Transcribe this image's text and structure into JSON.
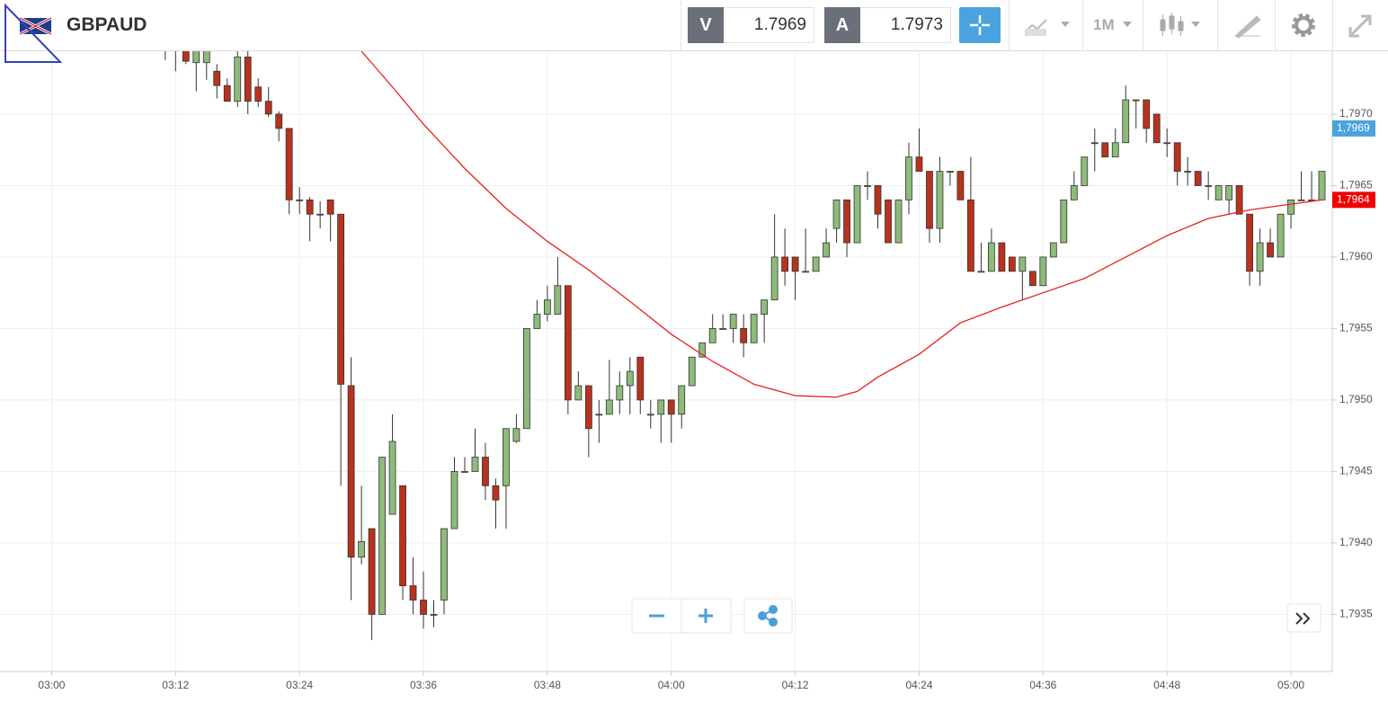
{
  "header": {
    "symbol": "GBPAUD",
    "sell_label": "V",
    "sell_price": "1.7969",
    "buy_label": "A",
    "buy_price": "1.7973",
    "timeframe": "1M"
  },
  "chart_data": {
    "type": "candlestick",
    "x": [
      "03:11",
      "03:12",
      "03:13",
      "03:14",
      "03:15",
      "03:16",
      "03:17",
      "03:18",
      "03:19",
      "03:20",
      "03:21",
      "03:22",
      "03:23",
      "03:24",
      "03:25",
      "03:26",
      "03:27",
      "03:28",
      "03:29",
      "03:30",
      "03:31",
      "03:32",
      "03:33",
      "03:34",
      "03:35",
      "03:36",
      "03:37",
      "03:38",
      "03:39",
      "03:40",
      "03:41",
      "03:42",
      "03:43",
      "03:44",
      "03:45",
      "03:46",
      "03:47",
      "03:48",
      "03:49",
      "03:50",
      "03:51",
      "03:52",
      "03:53",
      "03:54",
      "03:55",
      "03:56",
      "03:57",
      "03:58",
      "03:59",
      "04:00",
      "04:01",
      "04:02",
      "04:03",
      "04:04",
      "04:05",
      "04:06",
      "04:07",
      "04:08",
      "04:09",
      "04:10",
      "04:11",
      "04:12",
      "04:13",
      "04:14",
      "04:15",
      "04:16",
      "04:17",
      "04:18",
      "04:19",
      "04:20",
      "04:21",
      "04:22",
      "04:23",
      "04:24",
      "04:25",
      "04:26",
      "04:27",
      "04:28",
      "04:29",
      "04:30",
      "04:31",
      "04:32",
      "04:33",
      "04:34",
      "04:35",
      "04:36",
      "04:37",
      "04:38",
      "04:39",
      "04:40",
      "04:41",
      "04:42",
      "04:43",
      "04:44",
      "04:45",
      "04:46",
      "04:47",
      "04:48",
      "04:49",
      "04:50",
      "04:51",
      "04:52",
      "04:53",
      "04:54",
      "04:55",
      "04:56",
      "04:57",
      "04:58",
      "04:59",
      "05:00",
      "05:01",
      "05:02",
      "05:03"
    ],
    "open": [
      1.79752,
      1.79745,
      1.7976,
      1.79736,
      1.79736,
      1.7973,
      1.7972,
      1.79709,
      1.7974,
      1.79719,
      1.79709,
      1.797,
      1.7969,
      1.7964,
      1.7964,
      1.7963,
      1.7964,
      1.7963,
      1.7951,
      1.7939,
      1.7941,
      1.7935,
      1.7942,
      1.7944,
      1.7937,
      1.7936,
      1.7935,
      1.7936,
      1.7941,
      1.7945,
      1.7945,
      1.7946,
      1.7944,
      1.7944,
      1.79471,
      1.7948,
      1.7955,
      1.7956,
      1.7956,
      1.7958,
      1.795,
      1.7951,
      1.7949,
      1.7949,
      1.795,
      1.7951,
      1.7953,
      1.7949,
      1.7949,
      1.795,
      1.7949,
      1.7951,
      1.7953,
      1.7954,
      1.7955,
      1.7955,
      1.7955,
      1.7954,
      1.7956,
      1.7957,
      1.796,
      1.796,
      1.7959,
      1.7959,
      1.796,
      1.7962,
      1.7964,
      1.7961,
      1.7965,
      1.7965,
      1.7964,
      1.7961,
      1.7964,
      1.7967,
      1.7966,
      1.7962,
      1.7966,
      1.7966,
      1.7964,
      1.7959,
      1.7959,
      1.7961,
      1.796,
      1.7959,
      1.7959,
      1.7958,
      1.796,
      1.7961,
      1.7964,
      1.7965,
      1.7968,
      1.7968,
      1.7967,
      1.7968,
      1.7971,
      1.7971,
      1.797,
      1.7968,
      1.7968,
      1.7966,
      1.7966,
      1.7965,
      1.7964,
      1.7964,
      1.7965,
      1.7963,
      1.7959,
      1.7961,
      1.796,
      1.7963,
      1.7964,
      1.7964,
      1.7964
    ],
    "high": [
      1.7976,
      1.79752,
      1.79762,
      1.79748,
      1.79749,
      1.79735,
      1.79725,
      1.79748,
      1.7975,
      1.79725,
      1.79719,
      1.79702,
      1.7969,
      1.79649,
      1.79642,
      1.79639,
      1.7964,
      1.7963,
      1.7953,
      1.7944,
      1.7941,
      1.7946,
      1.7949,
      1.7944,
      1.7939,
      1.7938,
      1.7936,
      1.7941,
      1.7946,
      1.7946,
      1.7948,
      1.7947,
      1.79445,
      1.7948,
      1.7949,
      1.7955,
      1.7957,
      1.7958,
      1.796,
      1.7958,
      1.7952,
      1.7951,
      1.795,
      1.79528,
      1.7952,
      1.7953,
      1.7953,
      1.795,
      1.795,
      1.795,
      1.7951,
      1.7953,
      1.7954,
      1.7956,
      1.7956,
      1.7956,
      1.7956,
      1.7956,
      1.7957,
      1.7963,
      1.7962,
      1.796,
      1.7962,
      1.796,
      1.7962,
      1.7964,
      1.7964,
      1.7965,
      1.7966,
      1.7965,
      1.7964,
      1.7964,
      1.7968,
      1.7969,
      1.7966,
      1.7967,
      1.7966,
      1.7966,
      1.7967,
      1.7961,
      1.7962,
      1.7961,
      1.796,
      1.796,
      1.7959,
      1.796,
      1.7961,
      1.7964,
      1.7966,
      1.7967,
      1.7969,
      1.7968,
      1.7969,
      1.7972,
      1.7971,
      1.7971,
      1.797,
      1.7969,
      1.7968,
      1.7967,
      1.7966,
      1.7966,
      1.7965,
      1.7965,
      1.7965,
      1.7963,
      1.7962,
      1.7962,
      1.7963,
      1.7964,
      1.7966,
      1.7966,
      1.7966
    ],
    "low": [
      1.79738,
      1.7973,
      1.79735,
      1.79716,
      1.79724,
      1.79711,
      1.79709,
      1.79705,
      1.797,
      1.79705,
      1.79698,
      1.79681,
      1.7963,
      1.7963,
      1.79611,
      1.7962,
      1.79611,
      1.7944,
      1.7936,
      1.79385,
      1.79332,
      1.7935,
      1.7942,
      1.7936,
      1.7935,
      1.7934,
      1.79341,
      1.7935,
      1.7941,
      1.7945,
      1.7945,
      1.7943,
      1.7941,
      1.7941,
      1.7947,
      1.7948,
      1.7955,
      1.79555,
      1.7956,
      1.7949,
      1.795,
      1.7946,
      1.7947,
      1.7949,
      1.7949,
      1.7949,
      1.7949,
      1.7948,
      1.7947,
      1.7947,
      1.7948,
      1.7951,
      1.7953,
      1.7954,
      1.7955,
      1.7954,
      1.7953,
      1.7954,
      1.7954,
      1.7957,
      1.7958,
      1.7957,
      1.7959,
      1.7959,
      1.796,
      1.7961,
      1.796,
      1.7961,
      1.7964,
      1.7962,
      1.7961,
      1.7961,
      1.7963,
      1.7966,
      1.7961,
      1.7961,
      1.7965,
      1.7964,
      1.7959,
      1.7959,
      1.7959,
      1.7959,
      1.7959,
      1.7957,
      1.7958,
      1.7958,
      1.796,
      1.7961,
      1.7964,
      1.7965,
      1.7966,
      1.7967,
      1.7967,
      1.7968,
      1.7969,
      1.7968,
      1.7968,
      1.7967,
      1.7965,
      1.7965,
      1.7965,
      1.7964,
      1.7964,
      1.7963,
      1.7963,
      1.7958,
      1.7958,
      1.796,
      1.796,
      1.7962,
      1.7964,
      1.7964,
      1.7964
    ],
    "close": [
      1.79745,
      1.79748,
      1.79737,
      1.79745,
      1.79745,
      1.7972,
      1.79709,
      1.7974,
      1.79709,
      1.79709,
      1.797,
      1.7969,
      1.7964,
      1.7964,
      1.7963,
      1.7963,
      1.7963,
      1.79511,
      1.7939,
      1.79401,
      1.7935,
      1.7946,
      1.79471,
      1.7937,
      1.7936,
      1.7935,
      1.7935,
      1.7941,
      1.7945,
      1.7945,
      1.7946,
      1.7944,
      1.7943,
      1.7948,
      1.7948,
      1.7955,
      1.7956,
      1.7957,
      1.7958,
      1.795,
      1.7951,
      1.7948,
      1.7949,
      1.795,
      1.7951,
      1.7952,
      1.795,
      1.7949,
      1.795,
      1.7949,
      1.7951,
      1.7953,
      1.7954,
      1.7955,
      1.7955,
      1.7956,
      1.7954,
      1.7956,
      1.7957,
      1.796,
      1.7959,
      1.7959,
      1.7959,
      1.796,
      1.7961,
      1.7964,
      1.7961,
      1.7965,
      1.7965,
      1.7963,
      1.7961,
      1.7964,
      1.7967,
      1.7966,
      1.7962,
      1.7966,
      1.7966,
      1.7964,
      1.7959,
      1.7959,
      1.7961,
      1.7959,
      1.7959,
      1.796,
      1.7958,
      1.796,
      1.7961,
      1.7964,
      1.7965,
      1.7967,
      1.7968,
      1.7967,
      1.7968,
      1.7971,
      1.7971,
      1.7969,
      1.7968,
      1.7968,
      1.7966,
      1.7966,
      1.7965,
      1.7965,
      1.7965,
      1.7965,
      1.7963,
      1.7959,
      1.7961,
      1.796,
      1.7963,
      1.7964,
      1.7964,
      1.7964,
      1.7966
    ],
    "up_color": "#8dbb7a",
    "down_color": "#b8321d",
    "ma": {
      "color": "#e8201c",
      "x": [
        "03:30",
        "03:33",
        "03:36",
        "03:40",
        "03:44",
        "03:48",
        "03:52",
        "03:56",
        "04:00",
        "04:04",
        "04:08",
        "04:12",
        "04:16",
        "04:18",
        "04:20",
        "04:24",
        "04:28",
        "04:32",
        "04:36",
        "04:40",
        "04:44",
        "04:48",
        "04:52",
        "04:56",
        "05:00",
        "05:03"
      ],
      "values": [
        1.79744,
        1.79719,
        1.79693,
        1.79662,
        1.79634,
        1.79611,
        1.79591,
        1.79569,
        1.79546,
        1.79527,
        1.79511,
        1.79503,
        1.79502,
        1.79506,
        1.79516,
        1.79532,
        1.79554,
        1.79565,
        1.79575,
        1.79585,
        1.796,
        1.79615,
        1.79627,
        1.79633,
        1.79637,
        1.7964
      ]
    },
    "price_labels": [
      {
        "value": 1.7969,
        "label": "1,7969",
        "color": "#4aa3df"
      },
      {
        "value": 1.7964,
        "label": "1,7964",
        "color": "#ee0000"
      }
    ],
    "ylim": [
      1.7931,
      1.79744
    ],
    "yticks": [
      {
        "value": 1.7935,
        "label": "1,7935"
      },
      {
        "value": 1.794,
        "label": "1,7940"
      },
      {
        "value": 1.7945,
        "label": "1,7945"
      },
      {
        "value": 1.795,
        "label": "1,7950"
      },
      {
        "value": 1.7955,
        "label": "1,7955"
      },
      {
        "value": 1.796,
        "label": "1,7960"
      },
      {
        "value": 1.7965,
        "label": "1,7965"
      },
      {
        "value": 1.797,
        "label": "1,7970"
      }
    ],
    "xlim": [
      "02:55",
      "05:04"
    ],
    "xticks": [
      "03:00",
      "03:12",
      "03:24",
      "03:36",
      "03:48",
      "04:00",
      "04:12",
      "04:24",
      "04:36",
      "04:48",
      "05:00"
    ],
    "grid": true
  }
}
